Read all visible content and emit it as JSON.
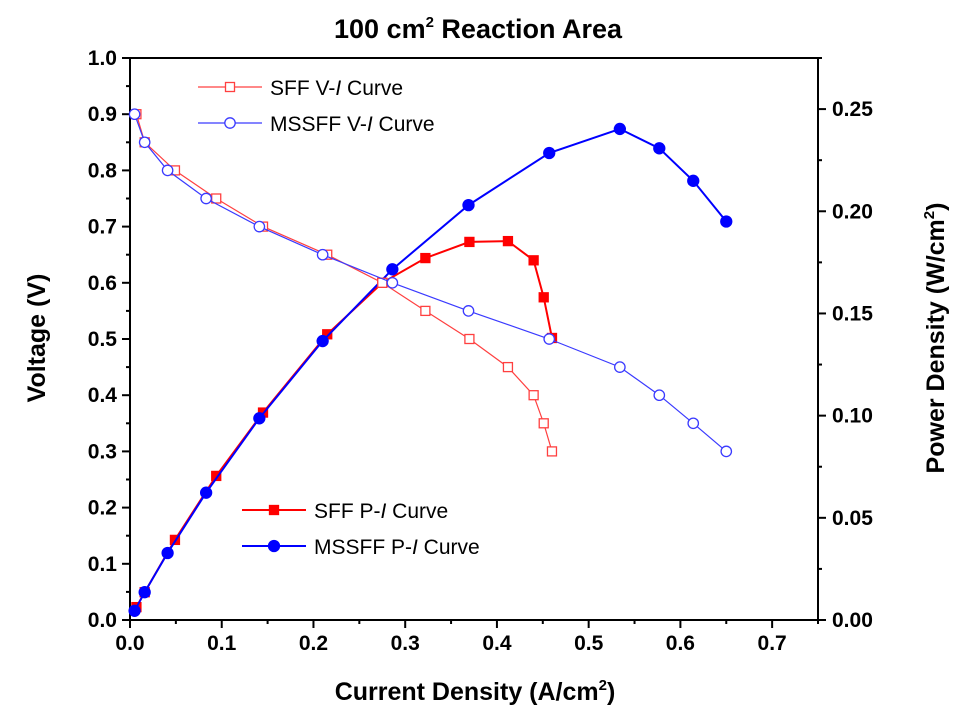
{
  "chart_data": {
    "type": "line",
    "title": "100 cm",
    "title_sup": "2",
    "title_suffix": " Reaction Area",
    "xlabel": "Current Density (A/cm",
    "xlabel_sup": "2",
    "xlabel_suffix": ")",
    "ylabel_left": "Voltage (V)",
    "ylabel_right": "Power Density (W/cm",
    "ylabel_right_sup": "2",
    "ylabel_right_suffix": ")",
    "xlim": [
      0,
      0.75
    ],
    "ylim_left": [
      0,
      1.0
    ],
    "ylim_right": [
      0,
      0.275
    ],
    "x_ticks": [
      "0.0",
      "0.1",
      "0.2",
      "0.3",
      "0.4",
      "0.5",
      "0.6",
      "0.7"
    ],
    "y_left_ticks": [
      "0.0",
      "0.1",
      "0.2",
      "0.3",
      "0.4",
      "0.5",
      "0.6",
      "0.7",
      "0.8",
      "0.9",
      "1.0"
    ],
    "y_right_ticks": [
      "0.00",
      "0.05",
      "0.10",
      "0.15",
      "0.20",
      "0.25"
    ],
    "grid": false,
    "series": [
      {
        "name": "SFF V-I Curve",
        "legend_prefix": "SFF V-",
        "legend_italic": "I",
        "legend_suffix": " Curve",
        "axis": "left",
        "color": "#ff4040",
        "marker": "square-open",
        "x": [
          0.007,
          0.016,
          0.049,
          0.094,
          0.145,
          0.215,
          0.275,
          0.322,
          0.37,
          0.412,
          0.44,
          0.451,
          0.46
        ],
        "y": [
          0.9,
          0.85,
          0.8,
          0.75,
          0.7,
          0.65,
          0.6,
          0.55,
          0.5,
          0.45,
          0.4,
          0.35,
          0.3
        ]
      },
      {
        "name": "MSSFF V-I Curve",
        "legend_prefix": "MSSFF V-",
        "legend_italic": "I",
        "legend_suffix": " Curve",
        "axis": "left",
        "color": "#3a3aff",
        "marker": "circle-open",
        "x": [
          0.005,
          0.016,
          0.041,
          0.083,
          0.141,
          0.21,
          0.286,
          0.369,
          0.457,
          0.534,
          0.577,
          0.614,
          0.65
        ],
        "y": [
          0.9,
          0.85,
          0.8,
          0.75,
          0.7,
          0.65,
          0.6,
          0.55,
          0.5,
          0.45,
          0.4,
          0.35,
          0.3
        ]
      },
      {
        "name": "SFF P-I Curve",
        "legend_prefix": "SFF P-",
        "legend_italic": "I",
        "legend_suffix": " Curve",
        "axis": "right",
        "color": "#ff0000",
        "marker": "square-filled",
        "x": [
          0.007,
          0.016,
          0.049,
          0.094,
          0.145,
          0.215,
          0.275,
          0.322,
          0.37,
          0.412,
          0.44,
          0.451,
          0.46
        ],
        "y": [
          0.0063,
          0.0136,
          0.0392,
          0.0705,
          0.1015,
          0.1398,
          0.165,
          0.1771,
          0.185,
          0.1854,
          0.176,
          0.1579,
          0.138
        ]
      },
      {
        "name": "MSSFF P-I Curve",
        "legend_prefix": "MSSFF P-",
        "legend_italic": "I",
        "legend_suffix": " Curve",
        "axis": "right",
        "color": "#0000ff",
        "marker": "circle-filled",
        "x": [
          0.005,
          0.016,
          0.041,
          0.083,
          0.141,
          0.21,
          0.286,
          0.369,
          0.457,
          0.534,
          0.577,
          0.614,
          0.65
        ],
        "y": [
          0.0045,
          0.0136,
          0.0328,
          0.0623,
          0.0987,
          0.1365,
          0.1716,
          0.203,
          0.2285,
          0.2403,
          0.2308,
          0.2149,
          0.195
        ]
      }
    ],
    "legends": [
      {
        "position": "top-left",
        "series": [
          0,
          1
        ]
      },
      {
        "position": "lower-middle",
        "series": [
          2,
          3
        ]
      }
    ]
  }
}
